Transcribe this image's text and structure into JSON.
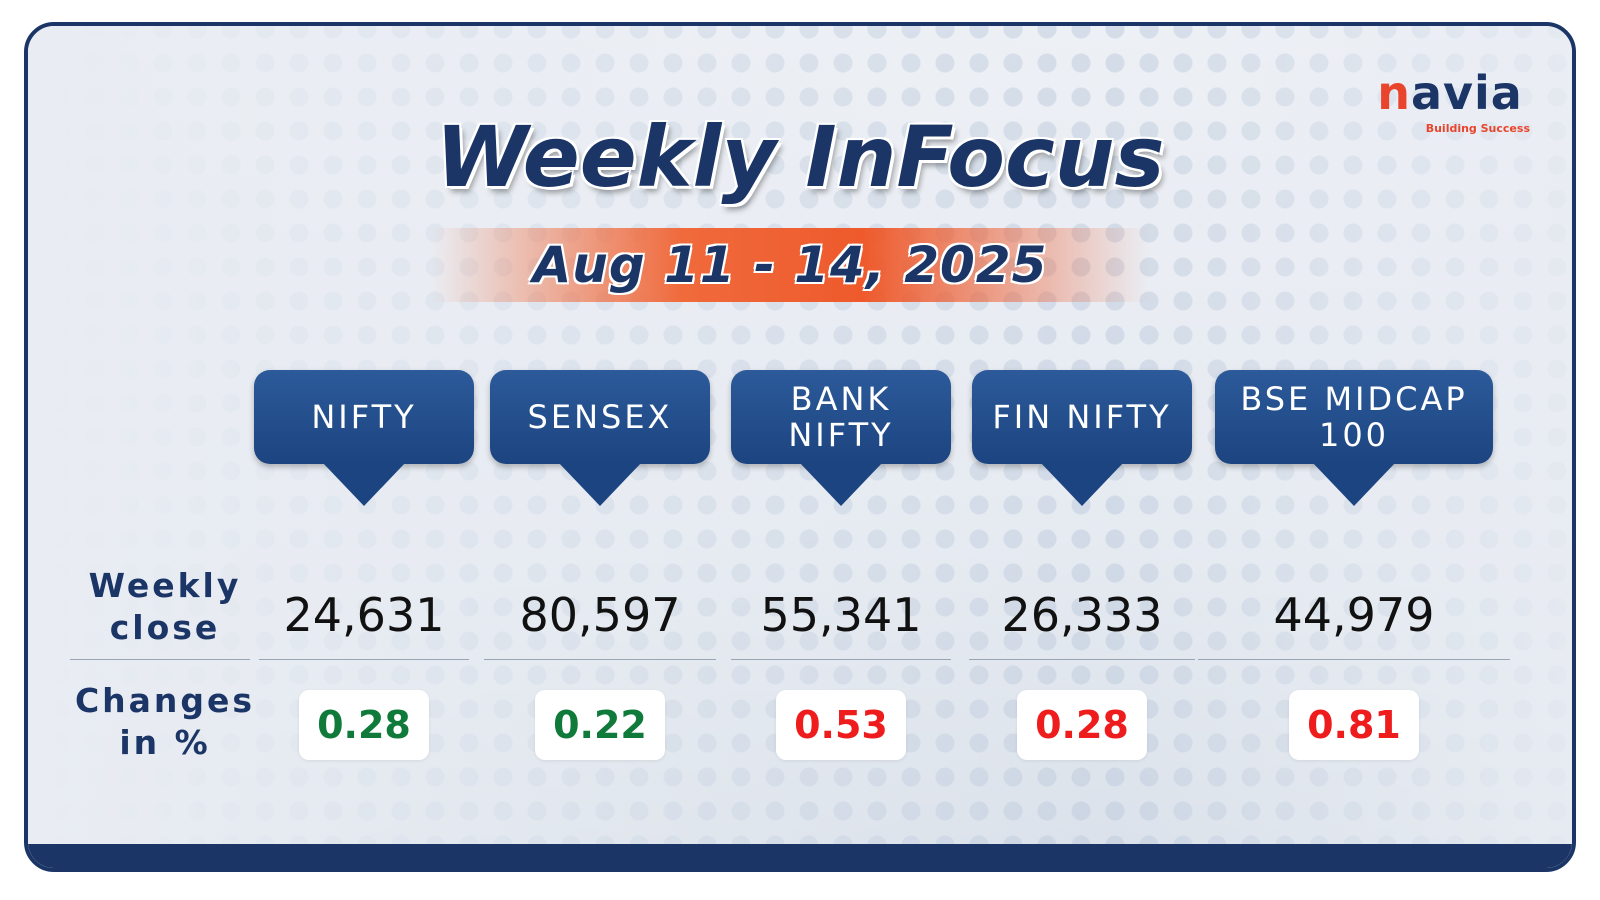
{
  "header": {
    "title": "Weekly InFocus",
    "date": "Aug 11 - 14, 2025"
  },
  "logo": {
    "name": "navia",
    "tagline": "Building Success"
  },
  "table": {
    "row_labels": [
      "Weekly close",
      "Changes in %"
    ],
    "columns": [
      {
        "name": "NIFTY",
        "close": "24,631",
        "change": "0.28",
        "change_color": "#0f7a3a"
      },
      {
        "name": "SENSEX",
        "close": "80,597",
        "change": "0.22",
        "change_color": "#0f7a3a"
      },
      {
        "name": "BANK NIFTY",
        "close": "55,341",
        "change": "0.53",
        "change_color": "#ee1c1c"
      },
      {
        "name": "FIN NIFTY",
        "close": "26,333",
        "change": "0.28",
        "change_color": "#ee1c1c"
      },
      {
        "name": "BSE MIDCAP 100",
        "close": "44,979",
        "change": "0.81",
        "change_color": "#ee1c1c"
      }
    ]
  }
}
